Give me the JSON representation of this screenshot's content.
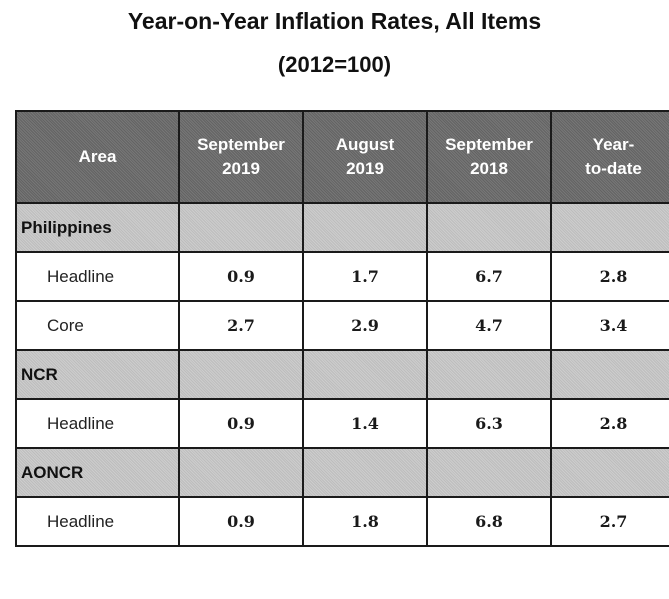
{
  "title": "Year-on-Year Inflation Rates, All Items",
  "subtitle": "(2012=100)",
  "table": {
    "headers": [
      [
        "Area"
      ],
      [
        "September",
        "2019"
      ],
      [
        "August",
        "2019"
      ],
      [
        "September",
        "2018"
      ],
      [
        "Year-",
        "to-date"
      ]
    ],
    "groups": [
      {
        "name": "Philippines",
        "rows": [
          {
            "label": "Headline",
            "values": [
              "0.9",
              "1.7",
              "6.7",
              "2.8"
            ]
          },
          {
            "label": "Core",
            "values": [
              "2.7",
              "2.9",
              "4.7",
              "3.4"
            ]
          }
        ]
      },
      {
        "name": "NCR",
        "rows": [
          {
            "label": "Headline",
            "values": [
              "0.9",
              "1.4",
              "6.3",
              "2.8"
            ]
          }
        ]
      },
      {
        "name": "AONCR",
        "rows": [
          {
            "label": "Headline",
            "values": [
              "0.9",
              "1.8",
              "6.8",
              "2.7"
            ]
          }
        ]
      }
    ]
  },
  "colors": {
    "header_bg": "#6e6e6e",
    "group_bg": "#c9c9c9",
    "border": "#1a1a1a"
  }
}
